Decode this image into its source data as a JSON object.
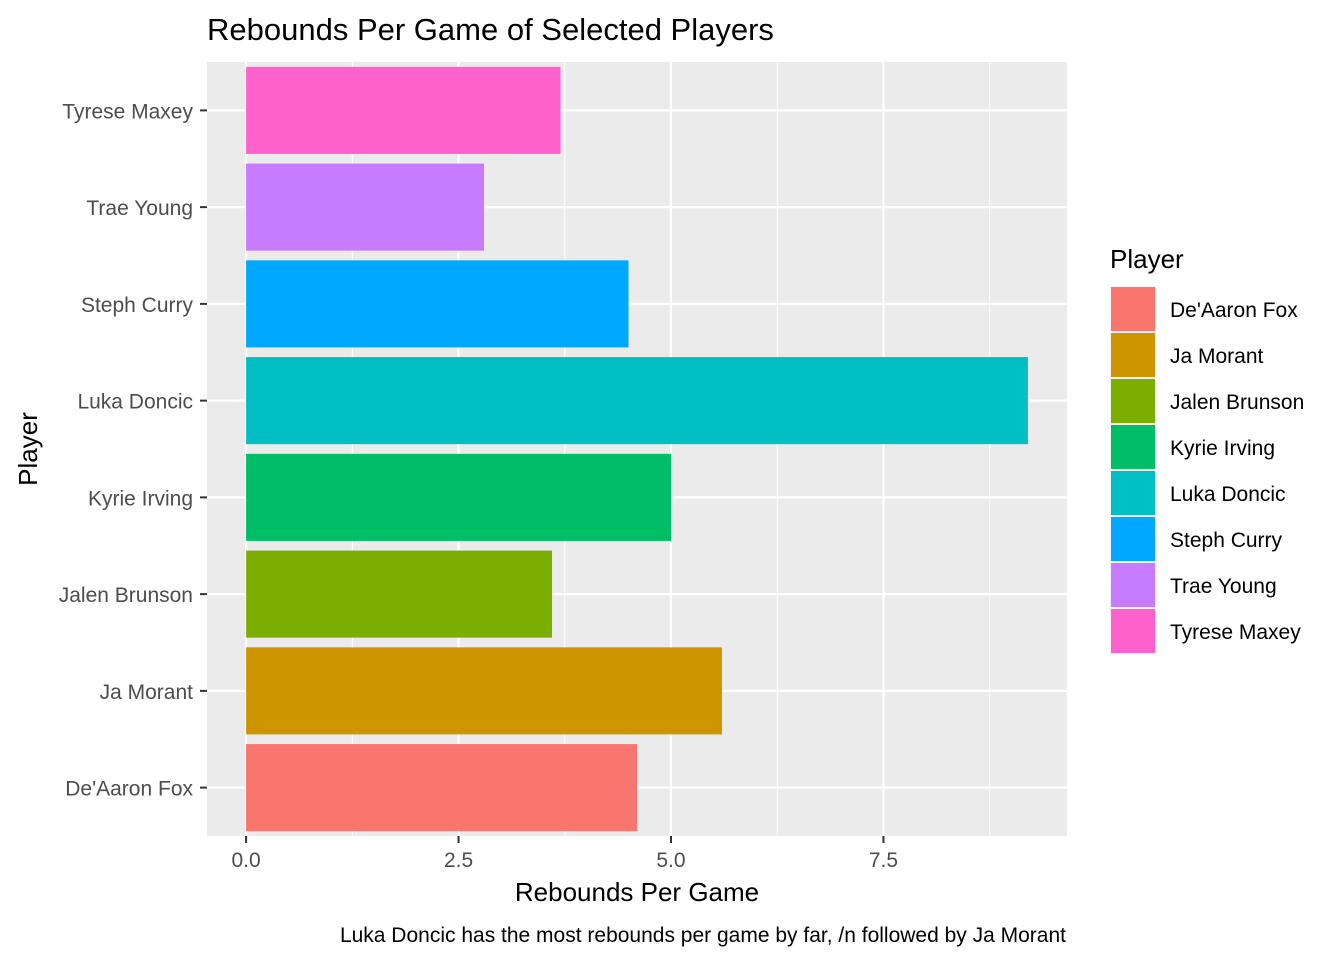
{
  "chart_data": {
    "type": "bar",
    "orientation": "horizontal",
    "title": "Rebounds Per Game of Selected Players",
    "xlabel": "Rebounds Per Game",
    "ylabel": "Player",
    "caption": "Luka Doncic has the most rebounds per game by far, /n followed by Ja Morant",
    "categories": [
      "De'Aaron Fox",
      "Ja Morant",
      "Jalen Brunson",
      "Kyrie Irving",
      "Luka Doncic",
      "Steph Curry",
      "Trae Young",
      "Tyrese Maxey"
    ],
    "values": [
      4.6,
      5.6,
      3.6,
      5.0,
      9.2,
      4.5,
      2.8,
      3.7
    ],
    "colors": [
      "#F8766D",
      "#CD9600",
      "#7CAE00",
      "#00BE67",
      "#00BFC4",
      "#00A9FF",
      "#C77CFF",
      "#FF61CC"
    ],
    "xlim": [
      -0.46,
      9.66
    ],
    "x_ticks": [
      0.0,
      2.5,
      5.0,
      7.5
    ],
    "x_tick_labels": [
      "0.0",
      "2.5",
      "5.0",
      "7.5"
    ],
    "grid": true,
    "legend": {
      "title": "Player",
      "placement": "right",
      "entries": [
        "De'Aaron Fox",
        "Ja Morant",
        "Jalen Brunson",
        "Kyrie Irving",
        "Luka Doncic",
        "Steph Curry",
        "Trae Young",
        "Tyrese Maxey"
      ]
    }
  }
}
